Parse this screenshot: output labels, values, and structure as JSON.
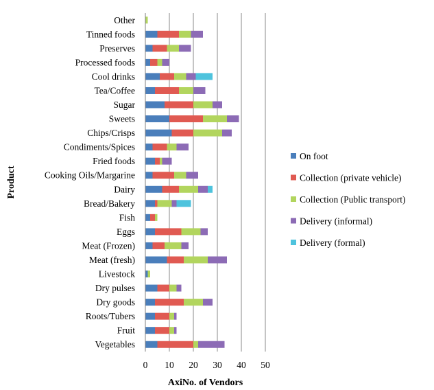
{
  "chart_data": {
    "type": "bar",
    "orientation": "horizontal",
    "stacked": true,
    "title": "",
    "xlabel": "AxiNo. of Vendors",
    "ylabel": "Product",
    "xlim": [
      0,
      50
    ],
    "xticks": [
      "0",
      "10",
      "20",
      "30",
      "40",
      "50"
    ],
    "grid": "vertical",
    "legend_position": "right",
    "categories": [
      "Vegetables",
      "Fruit",
      "Roots/Tubers",
      "Dry goods",
      "Dry pulses",
      "Livestock",
      "Meat (fresh)",
      "Meat (Frozen)",
      "Eggs",
      "Fish",
      "Bread/Bakery",
      "Dairy",
      "Cooking Oils/Margarine",
      "Fried foods",
      "Condiments/Spices",
      "Chips/Crisps",
      "Sweets",
      "Sugar",
      "Tea/Coffee",
      "Cool drinks",
      "Processed foods",
      "Preserves",
      "Tinned foods",
      "Other"
    ],
    "series": [
      {
        "name": "On foot",
        "color": "#4a7ebb",
        "values": [
          5,
          4,
          4,
          4,
          5,
          1,
          9,
          3,
          4,
          2,
          4,
          7,
          3,
          4,
          3,
          11,
          10,
          8,
          4,
          6,
          2,
          3,
          5,
          0
        ]
      },
      {
        "name": "Collection (private vehicle)",
        "color": "#e05a52",
        "values": [
          15,
          6,
          6,
          12,
          5,
          0,
          7,
          5,
          11,
          2,
          1,
          7,
          9,
          2,
          6,
          9,
          14,
          12,
          10,
          6,
          3,
          6,
          9,
          0
        ]
      },
      {
        "name": "Collection (Public transport)",
        "color": "#b2d55e",
        "values": [
          2,
          2,
          2,
          8,
          3,
          1,
          10,
          7,
          8,
          1,
          6,
          8,
          5,
          1,
          4,
          12,
          10,
          8,
          6,
          5,
          2,
          5,
          5,
          1
        ]
      },
      {
        "name": "Delivery (informal)",
        "color": "#8c6bb5",
        "values": [
          11,
          1,
          1,
          4,
          2,
          0,
          8,
          3,
          3,
          0,
          2,
          4,
          5,
          4,
          5,
          4,
          5,
          4,
          5,
          4,
          3,
          5,
          5,
          0
        ]
      },
      {
        "name": "Delivery (formal)",
        "color": "#4ec3dd",
        "values": [
          0,
          0,
          0,
          0,
          0,
          0,
          0,
          0,
          0,
          0,
          6,
          2,
          0,
          0,
          0,
          0,
          0,
          0,
          0,
          7,
          0,
          0,
          0,
          0
        ]
      }
    ]
  }
}
